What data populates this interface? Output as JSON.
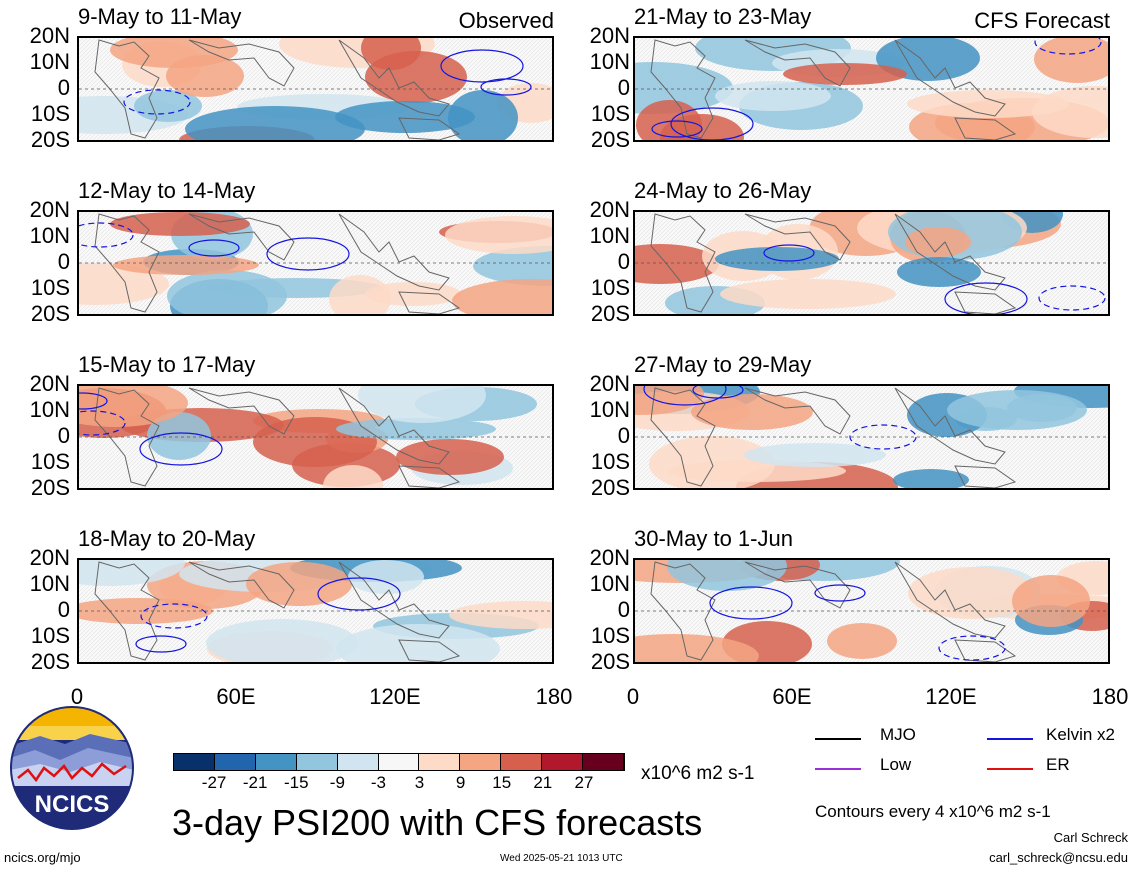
{
  "left_column": {
    "corner_label": "Observed",
    "panels": [
      "9-May to 11-May",
      "12-May to 14-May",
      "15-May to 17-May",
      "18-May to 20-May"
    ]
  },
  "right_column": {
    "corner_label": "CFS Forecast",
    "panels": [
      "21-May to 23-May",
      "24-May to 26-May",
      "27-May to 29-May",
      "30-May to 1-Jun"
    ]
  },
  "lat_labels": [
    "20N",
    "10N",
    "0",
    "10S",
    "20S"
  ],
  "lon_labels": [
    "0",
    "60E",
    "120E",
    "180"
  ],
  "colorbar": {
    "ticks": [
      "-27",
      "-21",
      "-15",
      "-9",
      "-3",
      "3",
      "9",
      "15",
      "21",
      "27"
    ],
    "colors": [
      "#08306b",
      "#2166ac",
      "#4393c3",
      "#92c5de",
      "#d1e5f0",
      "#f7f7f7",
      "#fddbc7",
      "#f4a582",
      "#d6604d",
      "#b2182b",
      "#67001f"
    ],
    "unit": "x10^6 m2 s-1"
  },
  "legend": {
    "items": [
      {
        "label": "MJO",
        "color": "#000000"
      },
      {
        "label": "Kelvin x2",
        "color": "#1515e0"
      },
      {
        "label": "Low",
        "color": "#9b30d9"
      },
      {
        "label": "ER",
        "color": "#e01010"
      }
    ],
    "contour_note": "Contours every 4 x10^6 m2 s-1"
  },
  "main_title": "3-day PSI200 with CFS forecasts",
  "logo_text": "NCICS",
  "footer": {
    "url": "ncics.org/mjo",
    "timestamp": "Wed 2025-05-21 1013 UTC",
    "author": "Carl Schreck",
    "email": "carl_schreck@ncsu.edu"
  }
}
